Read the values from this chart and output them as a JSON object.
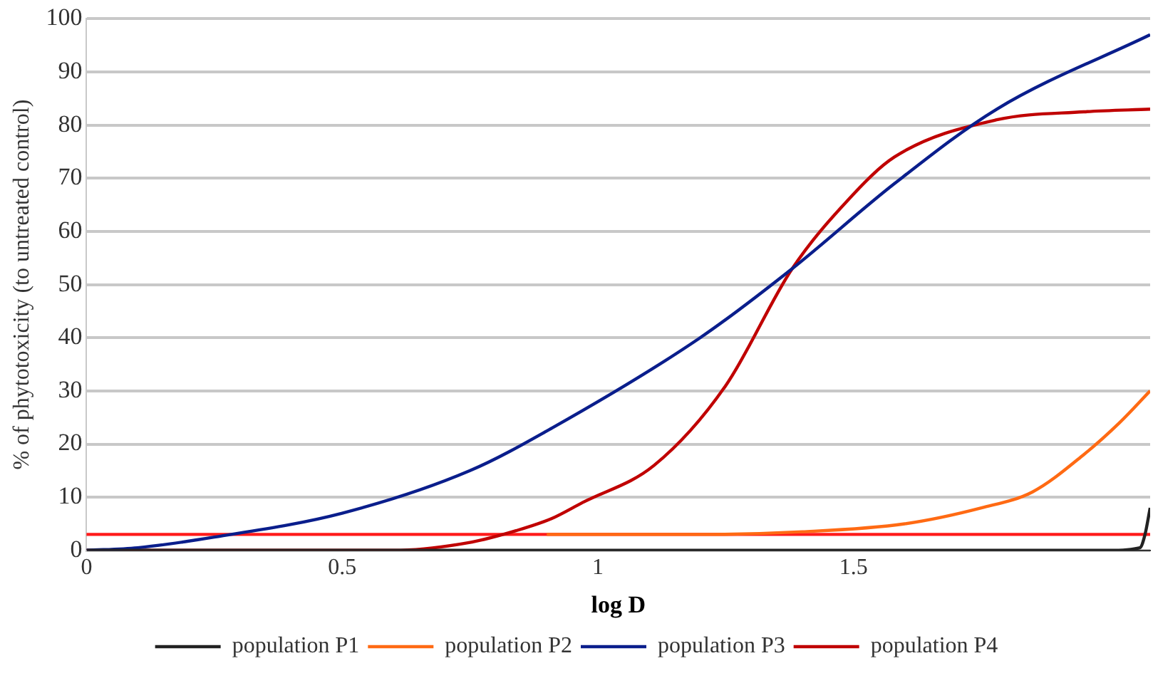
{
  "chart_data": {
    "type": "line",
    "xlabel": "log D",
    "ylabel": "% of phytotoxicity (to untreated control)",
    "xlim": [
      0,
      2.08
    ],
    "xticks": [
      0,
      0.5,
      1,
      1.5
    ],
    "ylim": [
      0,
      100
    ],
    "yticks": [
      0,
      10,
      20,
      30,
      40,
      50,
      60,
      70,
      80,
      90,
      100
    ],
    "grid": "y",
    "legend": "bottom",
    "marker": "none",
    "line_style": "solid",
    "ref_lines": [
      {
        "axis": "y",
        "value": 3,
        "color": "#ff1a1a"
      }
    ],
    "series": [
      {
        "name": "population P1",
        "color": "#222222",
        "x": [
          0,
          0.5,
          1,
          1.5,
          2,
          2.06,
          2.07,
          2.08
        ],
        "values": [
          0,
          0,
          0,
          0,
          0,
          0.5,
          3,
          8
        ]
      },
      {
        "name": "population P2",
        "color": "#ff6a13",
        "x": [
          0.9,
          1.2,
          1.4,
          1.6,
          1.75,
          1.85,
          1.95,
          2.02,
          2.08
        ],
        "values": [
          3,
          3,
          3.5,
          5,
          8,
          11,
          18,
          24,
          30
        ]
      },
      {
        "name": "population P3",
        "color": "#0a1e8c",
        "x": [
          0,
          0.1,
          0.25,
          0.5,
          0.75,
          0.91,
          1.2,
          1.38,
          1.58,
          1.78,
          2.08
        ],
        "values": [
          0,
          0.5,
          2.5,
          7,
          15,
          23,
          40,
          53,
          69,
          83,
          97
        ]
      },
      {
        "name": "population P4",
        "color": "#c00000",
        "x": [
          0,
          0.3,
          0.6,
          0.75,
          0.84,
          0.91,
          0.97,
          1.11,
          1.25,
          1.38,
          1.49,
          1.58,
          1.78,
          1.95,
          2.08
        ],
        "values": [
          0,
          0,
          0,
          1.5,
          3.7,
          6,
          9,
          16,
          31,
          53,
          66,
          74,
          81,
          82.5,
          83
        ]
      }
    ]
  }
}
